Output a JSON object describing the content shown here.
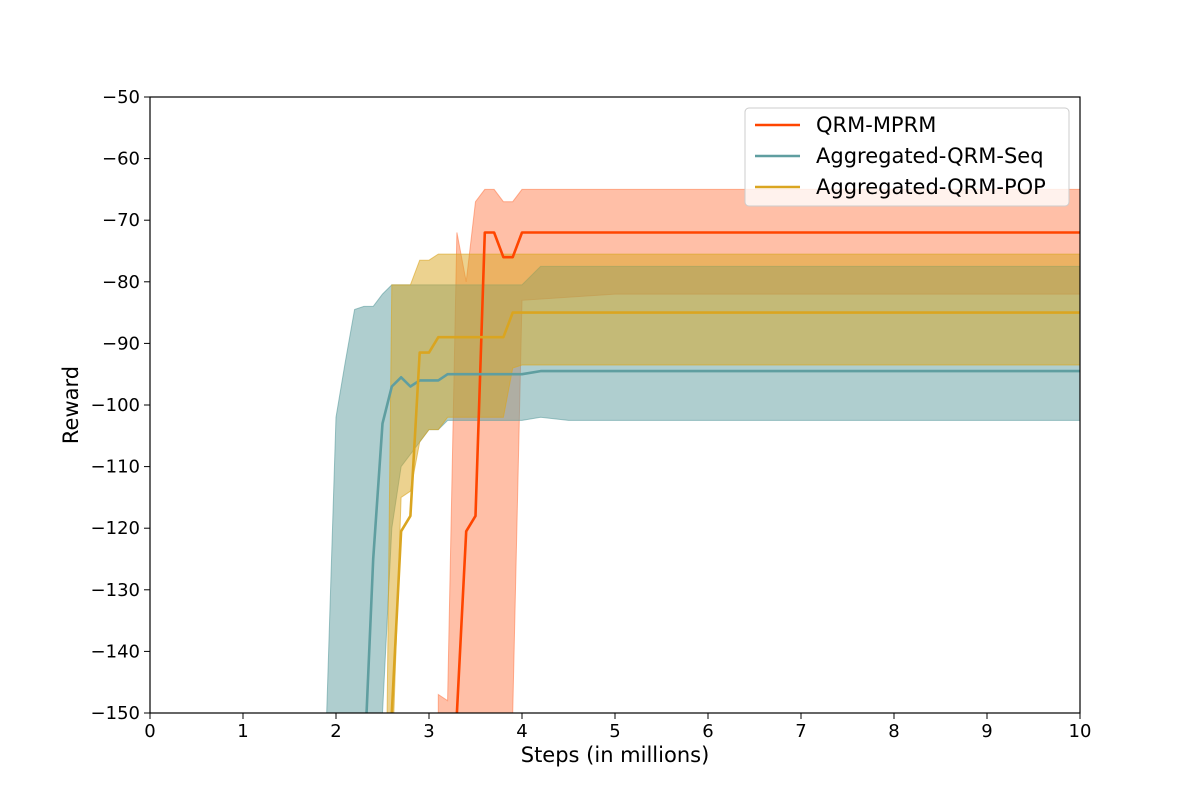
{
  "chart_data": {
    "type": "line",
    "title": "",
    "xlabel": "Steps (in millions)",
    "ylabel": "Reward",
    "xlim": [
      0,
      10
    ],
    "ylim": [
      -150,
      -50
    ],
    "xticks": [
      0,
      1,
      2,
      3,
      4,
      5,
      6,
      7,
      8,
      9,
      10
    ],
    "yticks": [
      -150,
      -140,
      -130,
      -120,
      -110,
      -100,
      -90,
      -80,
      -70,
      -60,
      -50
    ],
    "grid": false,
    "legend_position": "top-right",
    "series": [
      {
        "name": "QRM-MPRM",
        "color": "#ff4500",
        "band_color": "#ff7f50",
        "x": [
          3.1,
          3.2,
          3.3,
          3.4,
          3.5,
          3.6,
          3.7,
          3.8,
          3.9,
          4.0,
          5.0,
          6.0,
          7.0,
          8.0,
          9.0,
          10.0
        ],
        "mean": [
          -160,
          -160,
          -150,
          -120.5,
          -118,
          -72,
          -72,
          -76,
          -76,
          -72,
          -72,
          -72,
          -72,
          -72,
          -72,
          -72
        ],
        "upper": [
          -147,
          -148,
          -72,
          -80,
          -67,
          -65,
          -65,
          -67,
          -67,
          -65,
          -65,
          -65,
          -65,
          -65,
          -65,
          -65
        ],
        "lower": [
          -160,
          -160,
          -160,
          -160,
          -160,
          -160,
          -160,
          -160,
          -150,
          -83,
          -82,
          -82,
          -82,
          -82,
          -82,
          -82
        ]
      },
      {
        "name": "Aggregated-QRM-Seq",
        "color": "#5f9ea0",
        "band_color": "#5f9ea0",
        "x": [
          1.9,
          2.0,
          2.1,
          2.2,
          2.3,
          2.4,
          2.5,
          2.6,
          2.7,
          2.8,
          2.9,
          3.0,
          3.1,
          3.2,
          3.3,
          3.5,
          4.0,
          4.2,
          4.5,
          5.0,
          6.0,
          7.0,
          8.0,
          9.0,
          10.0
        ],
        "mean": [
          -160,
          -160,
          -160,
          -160,
          -160,
          -125,
          -103,
          -97,
          -95.5,
          -97,
          -96,
          -96,
          -96,
          -95,
          -95,
          -95,
          -95,
          -94.5,
          -94.5,
          -94.5,
          -94.5,
          -94.5,
          -94.5,
          -94.5,
          -94.5
        ],
        "upper": [
          -150,
          -102,
          -93,
          -84.5,
          -84,
          -84,
          -82,
          -80.5,
          -80.5,
          -80.5,
          -80.5,
          -80.5,
          -80.5,
          -80.5,
          -80.5,
          -80.5,
          -80.5,
          -77.5,
          -77.5,
          -77.5,
          -77.5,
          -77.5,
          -77.5,
          -77.5,
          -77.5
        ],
        "lower": [
          -160,
          -160,
          -160,
          -160,
          -160,
          -160,
          -150,
          -120,
          -110,
          -108,
          -106,
          -104,
          -104,
          -102.5,
          -102.5,
          -102.5,
          -102.5,
          -102,
          -102.5,
          -102.5,
          -102.5,
          -102.5,
          -102.5,
          -102.5,
          -102.5
        ]
      },
      {
        "name": "Aggregated-QRM-POP",
        "color": "#daa520",
        "band_color": "#daa520",
        "x": [
          2.55,
          2.6,
          2.7,
          2.8,
          2.9,
          3.0,
          3.1,
          3.2,
          3.5,
          3.8,
          3.9,
          4.0,
          4.5,
          4.55,
          5.0,
          6.0,
          7.0,
          8.0,
          9.0,
          10.0
        ],
        "mean": [
          -160,
          -150,
          -120.5,
          -118,
          -91.5,
          -91.5,
          -89,
          -89,
          -89,
          -89,
          -85,
          -85,
          -85,
          -85,
          -85,
          -85,
          -85,
          -85,
          -85,
          -85
        ],
        "upper": [
          -150,
          -80.5,
          -80.5,
          -80.5,
          -76.5,
          -76.5,
          -75.5,
          -75.5,
          -75.5,
          -75.5,
          -75.5,
          -75.5,
          -75.5,
          -75.5,
          -75.5,
          -75.5,
          -75.5,
          -75.5,
          -75.5,
          -75.5
        ],
        "lower": [
          -160,
          -160,
          -115,
          -114,
          -106,
          -104,
          -104,
          -102,
          -102,
          -102,
          -94,
          -93.5,
          -93.5,
          -93.5,
          -93.5,
          -93.5,
          -93.5,
          -93.5,
          -93.5,
          -93.5
        ]
      }
    ]
  }
}
